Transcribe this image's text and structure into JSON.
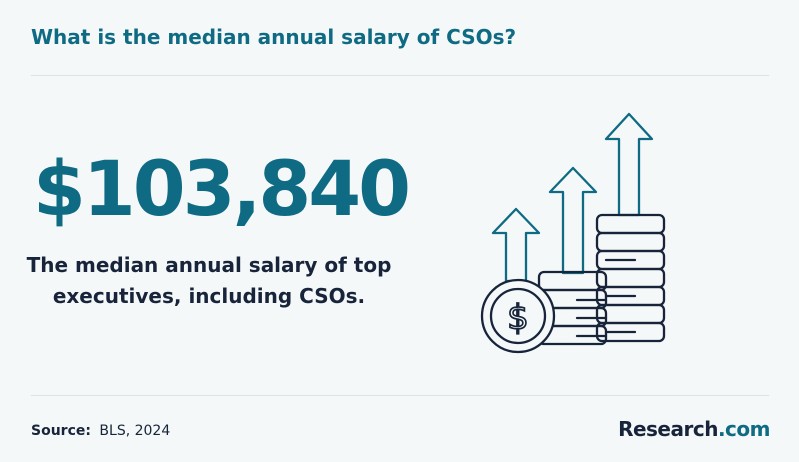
{
  "heading": "What is the median annual salary of CSOs?",
  "statistic": {
    "value": "$103,840",
    "description": "The median annual salary of top executives, including CSOs."
  },
  "illustration": {
    "icon": "rising-coin-stacks-with-dollar-coin",
    "currency_symbol": "$"
  },
  "footer": {
    "source_label": "Source:",
    "source_value": "BLS, 2024",
    "brand_name": "Research",
    "brand_domain": ".com"
  },
  "colors": {
    "background": "#f5f8f9",
    "accent_teal": "#0f6b83",
    "dark_navy": "#17243a",
    "divider": "#dfe3e6"
  }
}
